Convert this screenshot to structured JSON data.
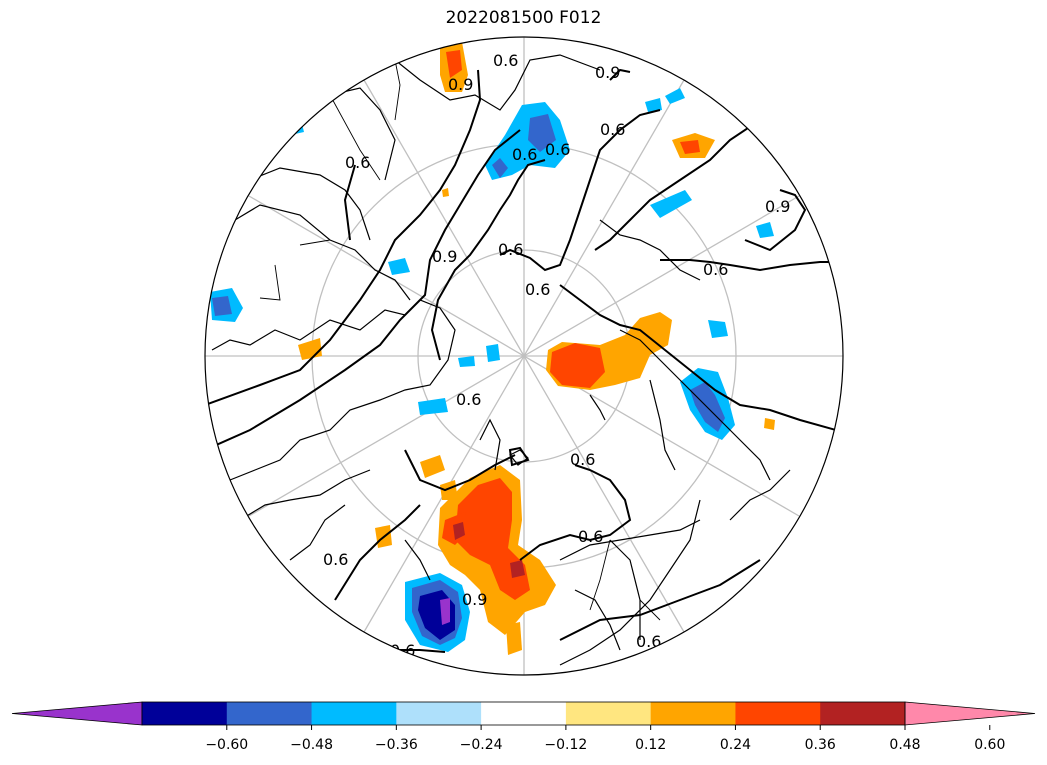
{
  "title": "2022081500 F012",
  "contour_labels": [
    "0.6",
    "0.6",
    "0.6",
    "0.6",
    "0.9",
    "0.9",
    "0.9",
    "0.6",
    "0.6",
    "0.6",
    "0.6",
    "0.6",
    "0.6",
    "0.9",
    "0.6",
    "0.6",
    "0.6",
    "0.9",
    "0.6"
  ],
  "colorbar": {
    "extend": "both",
    "colors": [
      "#9933cc",
      "#000099",
      "#3366cc",
      "#00bbff",
      "#aee0fb",
      "#ffffff",
      "#ffe680",
      "#ffa500",
      "#ff4500",
      "#b22222",
      "#ff88aa"
    ],
    "ticks": [
      "−0.60",
      "−0.48",
      "−0.36",
      "−0.24",
      "−0.12",
      "0.12",
      "0.24",
      "0.36",
      "0.48",
      "0.60"
    ]
  }
}
